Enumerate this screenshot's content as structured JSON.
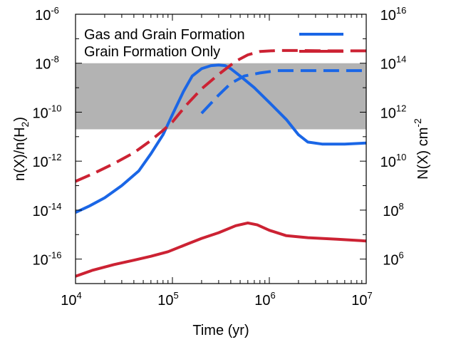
{
  "chart_data": {
    "type": "line",
    "xlabel": "Time (yr)",
    "ylabel_left": {
      "base": "n(X)/n(H",
      "sub": "2",
      "end": ")"
    },
    "ylabel_right": {
      "base": "N(X) cm",
      "sup": "-2"
    },
    "xscale": "log",
    "yscale": "log",
    "xlim": [
      10000,
      10000000
    ],
    "ylim_left": [
      1e-17,
      1e-06
    ],
    "ylim_right": [
      100000.0,
      1e+16
    ],
    "grid": false,
    "legend": "top",
    "x_ticks": [
      {
        "base": "10",
        "exp": "4",
        "value": 10000
      },
      {
        "base": "10",
        "exp": "5",
        "value": 100000
      },
      {
        "base": "10",
        "exp": "6",
        "value": 1000000
      },
      {
        "base": "10",
        "exp": "7",
        "value": 10000000
      }
    ],
    "y_ticks_left": [
      {
        "base": "10",
        "exp": "-6",
        "value": 1e-06
      },
      {
        "base": "10",
        "exp": "-8",
        "value": 1e-08
      },
      {
        "base": "10",
        "exp": "-10",
        "value": 1e-10
      },
      {
        "base": "10",
        "exp": "-12",
        "value": 1e-12
      },
      {
        "base": "10",
        "exp": "-14",
        "value": 1e-14
      },
      {
        "base": "10",
        "exp": "-16",
        "value": 1e-16
      }
    ],
    "y_ticks_right": [
      {
        "base": "10",
        "exp": "16",
        "value": 1e+16
      },
      {
        "base": "10",
        "exp": "14",
        "value": 100000000000000.0
      },
      {
        "base": "10",
        "exp": "12",
        "value": 1000000000000.0
      },
      {
        "base": "10",
        "exp": "10",
        "value": 10000000000.0
      },
      {
        "base": "10",
        "exp": "8",
        "value": 100000000.0
      },
      {
        "base": "10",
        "exp": "6",
        "value": 1000000.0
      }
    ],
    "shaded_band": {
      "y_range": [
        2e-11,
        1e-08
      ],
      "color": "#b3b3b3"
    },
    "colors": {
      "gas_and_grain": "#1a66e6",
      "grain_only": "#cc2233"
    },
    "series": [
      {
        "name": "Gas and Grain Formation",
        "axis": "left",
        "style": "solid",
        "color": "#1a66e6",
        "points": [
          [
            10000,
            8e-15
          ],
          [
            14000,
            1.5e-14
          ],
          [
            20000,
            3.2e-14
          ],
          [
            30000,
            1e-13
          ],
          [
            45000,
            4e-13
          ],
          [
            60000,
            2e-12
          ],
          [
            80000,
            1.2e-11
          ],
          [
            100000,
            8e-11
          ],
          [
            130000,
            7e-10
          ],
          [
            160000,
            3e-09
          ],
          [
            200000,
            6e-09
          ],
          [
            250000,
            8e-09
          ],
          [
            300000,
            8.5e-09
          ],
          [
            350000,
            8e-09
          ],
          [
            400000,
            6e-09
          ],
          [
            500000,
            3e-09
          ],
          [
            700000,
            1e-09
          ],
          [
            1000000,
            2.5e-10
          ],
          [
            1500000,
            5e-11
          ],
          [
            2000000,
            1.2e-11
          ],
          [
            2500000,
            6e-12
          ],
          [
            3500000,
            5e-12
          ],
          [
            6000000,
            5e-12
          ],
          [
            10000000,
            5.5e-12
          ]
        ]
      },
      {
        "name": "",
        "axis": "right",
        "style": "dashed",
        "color": "#1a66e6",
        "points": [
          [
            200000,
            900000000000.0
          ],
          [
            300000,
            5000000000000.0
          ],
          [
            400000,
            15000000000000.0
          ],
          [
            550000,
            30000000000000.0
          ],
          [
            800000,
            40000000000000.0
          ],
          [
            1200000,
            50000000000000.0
          ],
          [
            2000000,
            50000000000000.0
          ],
          [
            4000000,
            50000000000000.0
          ],
          [
            10000000,
            50000000000000.0
          ]
        ]
      },
      {
        "name": "Grain Formation Only",
        "axis": "left",
        "style": "dashed",
        "color": "#cc2233",
        "points": [
          [
            10000,
            1.5e-13
          ],
          [
            15000,
            3e-13
          ],
          [
            25000,
            8e-13
          ],
          [
            40000,
            2.2e-12
          ],
          [
            60000,
            7e-12
          ],
          [
            80000,
            1.8e-11
          ],
          [
            100000,
            4e-11
          ],
          [
            140000,
            2e-10
          ],
          [
            200000,
            9e-10
          ],
          [
            300000,
            3.5e-09
          ],
          [
            450000,
            1.2e-08
          ],
          [
            600000,
            2.2e-08
          ],
          [
            800000,
            3e-08
          ],
          [
            1200000,
            3.3e-08
          ],
          [
            2000000,
            3.3e-08
          ],
          [
            4000000,
            3.2e-08
          ],
          [
            10000000,
            3.2e-08
          ]
        ]
      },
      {
        "name": "",
        "axis": "left",
        "style": "solid",
        "color": "#cc2233",
        "points": [
          [
            10000,
            2e-17
          ],
          [
            15000,
            3.5e-17
          ],
          [
            25000,
            6e-17
          ],
          [
            40000,
            9e-17
          ],
          [
            60000,
            1.3e-16
          ],
          [
            90000,
            2e-16
          ],
          [
            140000,
            4e-16
          ],
          [
            200000,
            7e-16
          ],
          [
            300000,
            1.2e-15
          ],
          [
            450000,
            2.3e-15
          ],
          [
            600000,
            3e-15
          ],
          [
            750000,
            2.5e-15
          ],
          [
            1000000,
            1.5e-15
          ],
          [
            1500000,
            9e-16
          ],
          [
            2500000,
            7.5e-16
          ],
          [
            5000000,
            6.5e-16
          ],
          [
            10000000,
            5.5e-16
          ]
        ]
      }
    ]
  }
}
